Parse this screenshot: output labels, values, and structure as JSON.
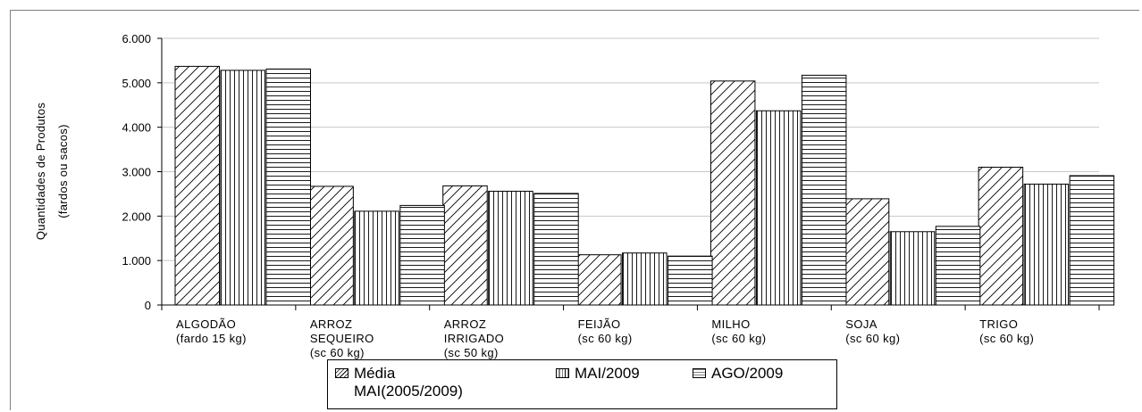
{
  "chart_data": {
    "type": "bar",
    "ylabel_lines": [
      "Quantidades de Produtos",
      "(fardos ou sacos)"
    ],
    "ylim": [
      0,
      6000
    ],
    "yticks": [
      "0",
      "1.000",
      "2.000",
      "3.000",
      "4.000",
      "5.000",
      "6.000"
    ],
    "ytick_values": [
      0,
      1000,
      2000,
      3000,
      4000,
      5000,
      6000
    ],
    "grid": true,
    "legend_position": "bottom",
    "categories": [
      [
        "ALGODÃO",
        "(fardo 15 kg)"
      ],
      [
        "ARROZ",
        "SEQUEIRO",
        "(sc 60 kg)"
      ],
      [
        "ARROZ",
        "IRRIGADO",
        "(sc 50 kg)"
      ],
      [
        "FEIJÃO",
        "(sc 60 kg)"
      ],
      [
        "MILHO",
        "(sc 60 kg)"
      ],
      [
        "SOJA",
        "(sc 60 kg)"
      ],
      [
        "TRIGO",
        "(sc 60 kg)"
      ]
    ],
    "series": [
      {
        "name": "Média MAI(2005/2009)",
        "pattern": "diagonal",
        "values": [
          5370,
          2670,
          2680,
          1130,
          5040,
          2390,
          3100
        ]
      },
      {
        "name": "MAI/2009",
        "pattern": "vertical",
        "values": [
          5280,
          2110,
          2560,
          1170,
          4370,
          1650,
          2720
        ]
      },
      {
        "name": "AGO/2009",
        "pattern": "horizontal",
        "values": [
          5310,
          2240,
          2510,
          1100,
          5170,
          1770,
          2910
        ]
      }
    ]
  },
  "legend": {
    "items": [
      {
        "label_lines": [
          "Média",
          "MAI(2005/2009)"
        ],
        "pattern": "diagonal"
      },
      {
        "label_lines": [
          "MAI/2009"
        ],
        "pattern": "vertical"
      },
      {
        "label_lines": [
          "AGO/2009"
        ],
        "pattern": "horizontal"
      }
    ]
  }
}
